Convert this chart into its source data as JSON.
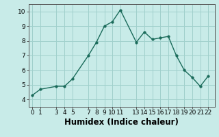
{
  "x": [
    0,
    1,
    3,
    4,
    5,
    7,
    8,
    9,
    10,
    11,
    13,
    14,
    15,
    16,
    17,
    18,
    19,
    20,
    21,
    22
  ],
  "y": [
    4.3,
    4.7,
    4.9,
    4.9,
    5.4,
    7.0,
    7.9,
    9.0,
    9.3,
    10.1,
    7.9,
    8.6,
    8.1,
    8.2,
    8.3,
    7.0,
    6.0,
    5.5,
    4.9,
    5.6
  ],
  "line_color": "#1a6b5a",
  "marker_color": "#1a6b5a",
  "bg_color": "#c8ebe8",
  "grid_color": "#a0d0cc",
  "xlabel": "Humidex (Indice chaleur)",
  "xlim": [
    -0.5,
    22.8
  ],
  "ylim": [
    3.5,
    10.5
  ],
  "xticks": [
    0,
    1,
    3,
    4,
    5,
    7,
    8,
    9,
    10,
    11,
    13,
    14,
    15,
    16,
    17,
    18,
    19,
    20,
    21,
    22
  ],
  "yticks": [
    4,
    5,
    6,
    7,
    8,
    9,
    10
  ],
  "tick_fontsize": 6.5,
  "xlabel_fontsize": 8.5
}
